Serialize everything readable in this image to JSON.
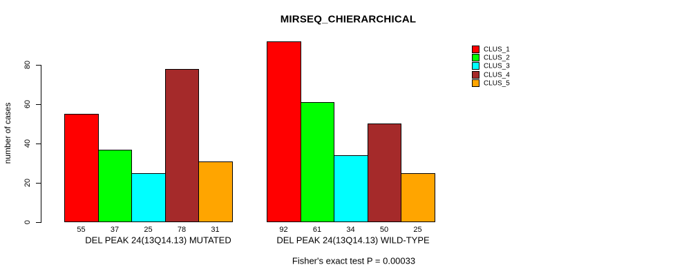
{
  "chart_data": {
    "type": "bar",
    "title": "MIRSEQ_CHIERARCHICAL",
    "ylabel": "number of cases",
    "xlabel": "",
    "categories": [
      "DEL PEAK 24(13Q14.13) MUTATED",
      "DEL PEAK 24(13Q14.13) WILD-TYPE"
    ],
    "series": [
      {
        "name": "CLUS_1",
        "color": "#FF0000",
        "values": [
          55,
          92
        ]
      },
      {
        "name": "CLUS_2",
        "color": "#00FF00",
        "values": [
          37,
          61
        ]
      },
      {
        "name": "CLUS_3",
        "color": "#00FFFF",
        "values": [
          25,
          34
        ]
      },
      {
        "name": "CLUS_4",
        "color": "#A52A2A",
        "values": [
          78,
          50
        ]
      },
      {
        "name": "CLUS_5",
        "color": "#FFA500",
        "values": [
          31,
          25
        ]
      }
    ],
    "yticks": [
      0,
      20,
      40,
      60,
      80
    ],
    "ylim": [
      0,
      93
    ],
    "grid": false,
    "legend_position": "right",
    "show_bar_value_labels": true,
    "annotation": "Fisher's exact test P = 0.00033"
  }
}
